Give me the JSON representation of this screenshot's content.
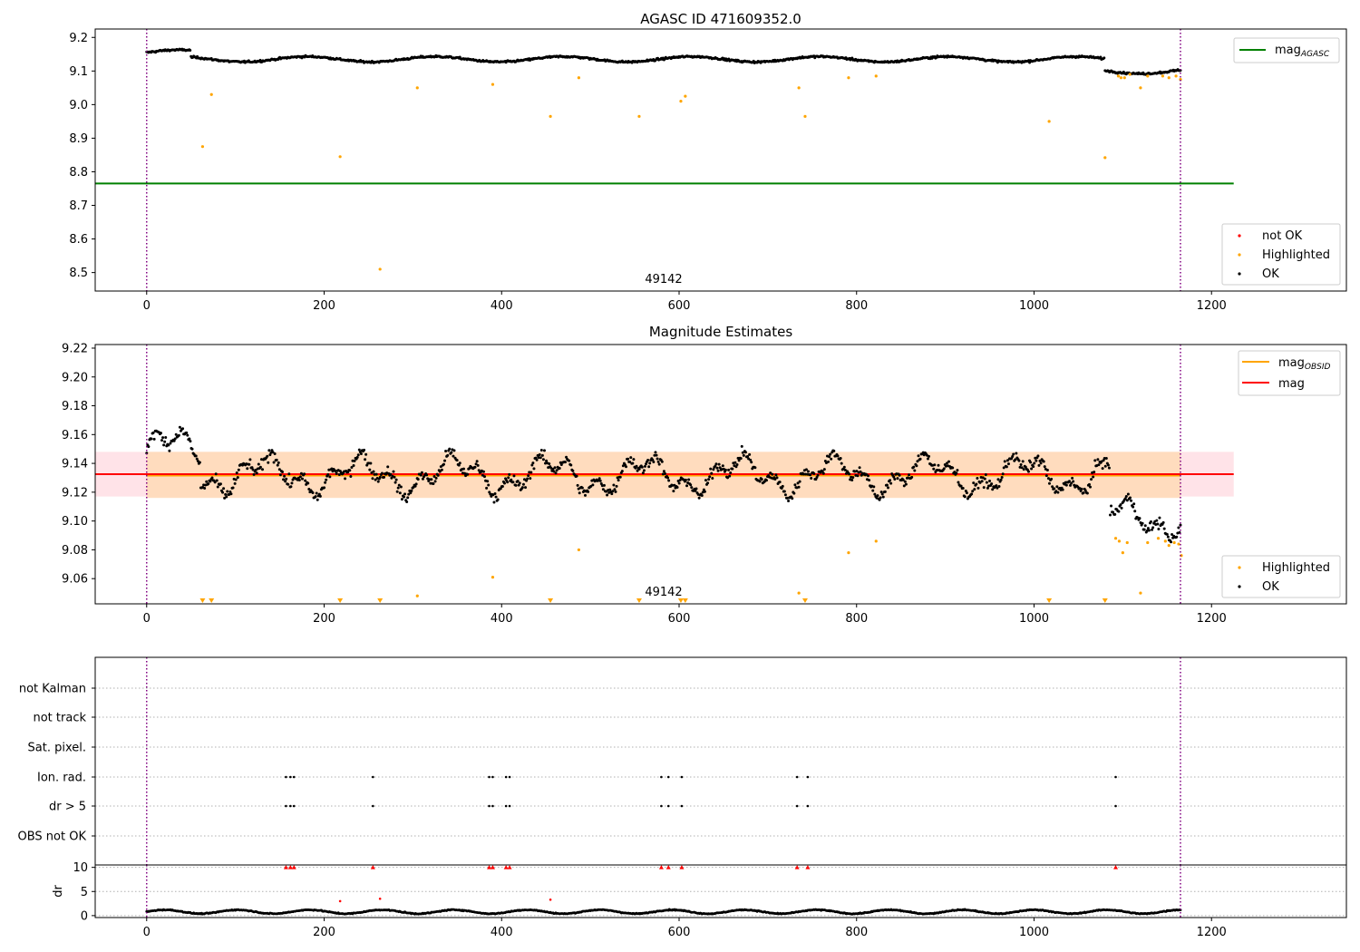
{
  "colors": {
    "ok": "#000000",
    "highlighted": "#ffa500",
    "not_ok": "#ff0000",
    "mag_agasc_line": "#008000",
    "mag_obsid_line": "#ffa500",
    "mag_line": "#ff0000",
    "obs_boundary": "#800080",
    "band_red": "#ffc0cb",
    "band_orange": "#ffdab9"
  },
  "chart_data": [
    {
      "type": "scatter",
      "title": "AGASC ID 471609352.0",
      "xlim": [
        -58,
        1352
      ],
      "ylim": [
        8.445,
        9.225
      ],
      "xticks": [
        0,
        200,
        400,
        600,
        800,
        1000,
        1200
      ],
      "yticks": [
        8.5,
        8.6,
        8.7,
        8.8,
        8.9,
        9.0,
        9.1,
        9.2
      ],
      "yticklabels": [
        "8.5",
        "8.6",
        "8.7",
        "8.8",
        "8.9",
        "9.0",
        "9.1",
        "9.2"
      ],
      "annotation": {
        "text": "49142",
        "x": 583,
        "y": 8.47
      },
      "obs_boundaries": [
        0,
        1165
      ],
      "hlines": [
        {
          "label": "mag",
          "sub": "AGASC",
          "y": 8.765,
          "x": [
            -58,
            1225
          ],
          "color_key": "mag_agasc_line"
        }
      ],
      "ok_series": {
        "name": "OK",
        "n": 1166,
        "x_range": [
          0,
          1165
        ],
        "y_center": 9.14,
        "y_noise": 0.012,
        "trend_segments": [
          {
            "x": [
              0,
              50
            ],
            "y": 9.155
          },
          {
            "x": [
              50,
              1080
            ],
            "y": 9.135
          },
          {
            "x": [
              1080,
              1165
            ],
            "y": 9.1
          }
        ]
      },
      "highlighted_points": [
        [
          63,
          8.875
        ],
        [
          73,
          9.03
        ],
        [
          218,
          8.845
        ],
        [
          263,
          8.51
        ],
        [
          305,
          9.05
        ],
        [
          390,
          9.06
        ],
        [
          455,
          8.965
        ],
        [
          487,
          9.08
        ],
        [
          555,
          8.965
        ],
        [
          602,
          9.01
        ],
        [
          607,
          9.025
        ],
        [
          735,
          9.05
        ],
        [
          742,
          8.965
        ],
        [
          791,
          9.08
        ],
        [
          822,
          9.085
        ],
        [
          1017,
          8.95
        ],
        [
          1080,
          8.842
        ],
        [
          1095,
          9.085
        ],
        [
          1098,
          9.08
        ],
        [
          1102,
          9.08
        ],
        [
          1108,
          9.09
        ],
        [
          1120,
          9.05
        ],
        [
          1128,
          9.085
        ],
        [
          1145,
          9.085
        ],
        [
          1152,
          9.08
        ],
        [
          1160,
          9.085
        ],
        [
          1165,
          9.075
        ]
      ],
      "legend": {
        "placement": "lower-right",
        "entries": [
          "not OK",
          "Highlighted",
          "OK"
        ]
      },
      "legend_top": {
        "placement": "upper-right",
        "entries": [
          "mag_AGASC"
        ]
      }
    },
    {
      "type": "scatter",
      "title": "Magnitude Estimates",
      "xlim": [
        -58,
        1352
      ],
      "ylim": [
        9.0425,
        9.2225
      ],
      "xticks": [
        0,
        200,
        400,
        600,
        800,
        1000,
        1200
      ],
      "yticks": [
        9.06,
        9.08,
        9.1,
        9.12,
        9.14,
        9.16,
        9.18,
        9.2,
        9.22
      ],
      "yticklabels": [
        "9.06",
        "9.08",
        "9.10",
        "9.12",
        "9.14",
        "9.16",
        "9.18",
        "9.20",
        "9.22"
      ],
      "annotation": {
        "text": "49142",
        "x": 583,
        "y": 9.047
      },
      "obs_boundaries": [
        0,
        1165
      ],
      "hlines": [
        {
          "label": "mag",
          "sub": "OBSID",
          "y": 9.1325,
          "x": [
            0,
            1165
          ],
          "color_key": "mag_obsid_line"
        },
        {
          "label": "mag",
          "sub": "",
          "y": 9.1325,
          "x": [
            -58,
            1225
          ],
          "color_key": "mag_line"
        }
      ],
      "bands": [
        {
          "y": [
            9.117,
            9.148
          ],
          "x": [
            -58,
            1225
          ],
          "color_key": "band_red",
          "opacity": 0.45
        },
        {
          "y": [
            9.116,
            9.148
          ],
          "x": [
            0,
            1165
          ],
          "color_key": "band_orange",
          "opacity": 0.9
        }
      ],
      "ok_series": {
        "name": "OK",
        "n": 1090,
        "x_range": [
          0,
          1165
        ],
        "y_center": 9.132,
        "y_noise": 0.012
      },
      "highlighted_points": [
        [
          487,
          9.08
        ],
        [
          390,
          9.061
        ],
        [
          305,
          9.048
        ],
        [
          735,
          9.05
        ],
        [
          791,
          9.078
        ],
        [
          822,
          9.086
        ],
        [
          1092,
          9.088
        ],
        [
          1096,
          9.086
        ],
        [
          1100,
          9.078
        ],
        [
          1105,
          9.085
        ],
        [
          1120,
          9.05
        ],
        [
          1128,
          9.085
        ],
        [
          1140,
          9.088
        ],
        [
          1148,
          9.086
        ],
        [
          1152,
          9.083
        ],
        [
          1158,
          9.085
        ],
        [
          1163,
          9.084
        ],
        [
          1166,
          9.076
        ]
      ],
      "offscale_markers_x": [
        63,
        73,
        218,
        263,
        455,
        555,
        602,
        607,
        742,
        1017,
        1080
      ],
      "legend": {
        "placement": "lower-right",
        "entries": [
          "Highlighted",
          "OK"
        ]
      },
      "legend_top": {
        "placement": "upper-right",
        "entries": [
          "mag_OBSID",
          "mag"
        ]
      }
    },
    {
      "type": "scatter",
      "title": "",
      "xlim": [
        -58,
        1352
      ],
      "xticks": [
        0,
        200,
        400,
        600,
        800,
        1000,
        1200
      ],
      "flag_rows": [
        "not Kalman",
        "not track",
        "Sat. pixel.",
        "Ion. rad.",
        "dr > 5",
        "OBS not OK"
      ],
      "flag_points": {
        "Ion. rad.": [
          157,
          162,
          166,
          255,
          386,
          390,
          405,
          409,
          580,
          588,
          603,
          733,
          745,
          1092
        ],
        "dr > 5": [
          157,
          162,
          166,
          255,
          386,
          390,
          405,
          409,
          580,
          588,
          603,
          733,
          745,
          1092
        ]
      },
      "obs_boundaries": [
        0,
        1165
      ]
    },
    {
      "type": "scatter",
      "title": "",
      "ylabel": "dr",
      "xlim": [
        -58,
        1352
      ],
      "ylim": [
        -0.4,
        10.5
      ],
      "yticks": [
        0,
        5,
        10
      ],
      "yticklabels": [
        "0",
        "5",
        "10"
      ],
      "xticks": [
        0,
        200,
        400,
        600,
        800,
        1000,
        1200
      ],
      "xticklabels": [
        "0",
        "200",
        "400",
        "600",
        "800",
        "1000",
        "1200"
      ],
      "ok_series": {
        "name": "OK",
        "n": 1166,
        "x_range": [
          0,
          1165
        ],
        "y_center": 0.8,
        "y_noise": 0.35
      },
      "not_ok_capped_x": [
        157,
        162,
        166,
        255,
        386,
        390,
        405,
        409,
        580,
        588,
        603,
        733,
        745,
        1092
      ],
      "not_ok_points": [
        [
          218,
          3.0
        ],
        [
          263,
          3.5
        ],
        [
          455,
          3.3
        ]
      ],
      "obs_boundaries": [
        0,
        1165
      ]
    }
  ]
}
